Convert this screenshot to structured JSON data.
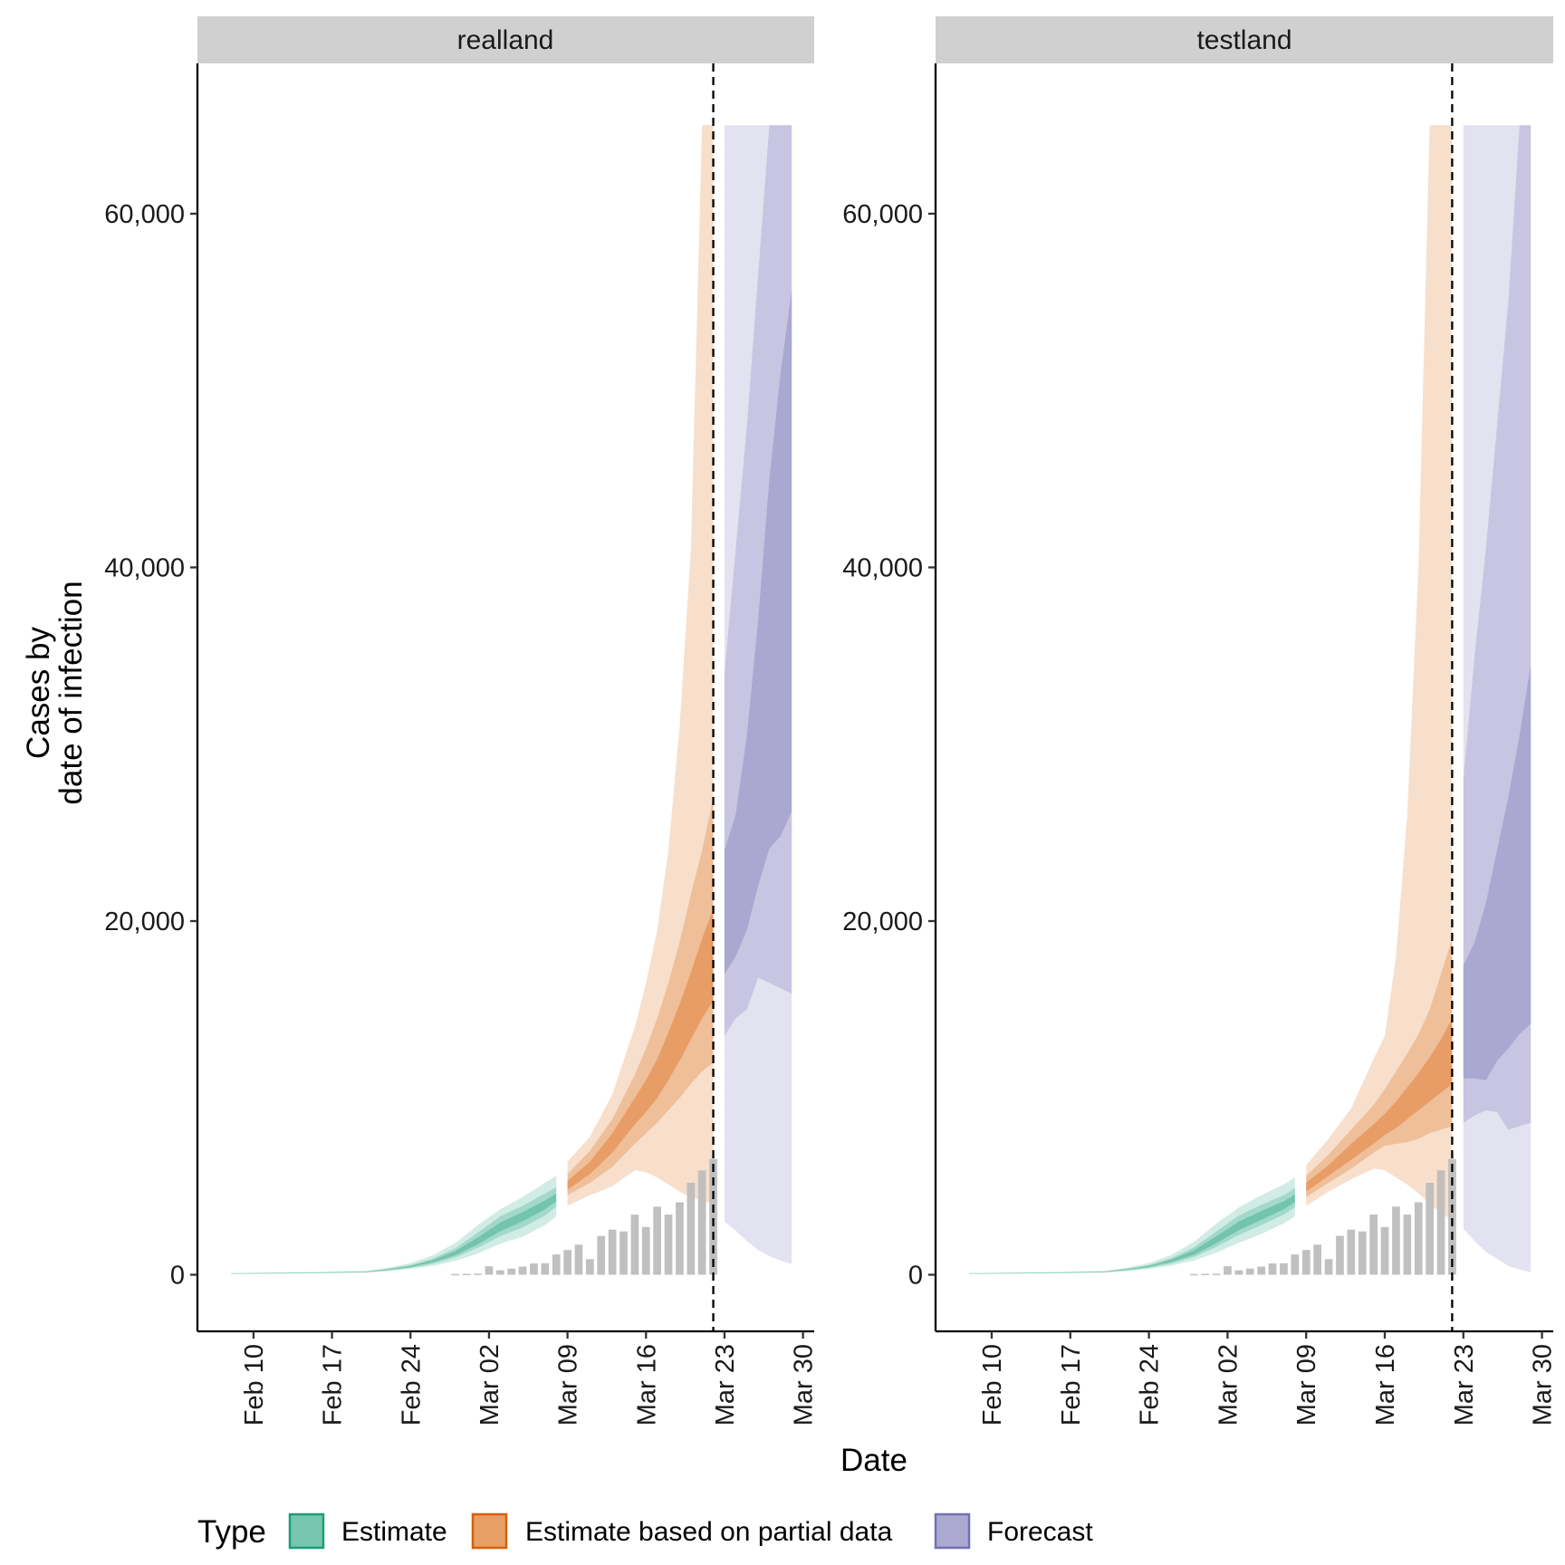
{
  "chart_data": {
    "type": "area",
    "xlabel": "Date",
    "ylabel_lines": [
      "Cases by",
      "date of infection"
    ],
    "y_ticks": [
      0,
      20000,
      40000,
      60000
    ],
    "y_tick_labels": [
      "0",
      "20,000",
      "40,000",
      "60,000"
    ],
    "ylim": [
      -3200,
      68500
    ],
    "x_ticks": [
      "2020-02-10",
      "2020-02-17",
      "2020-02-24",
      "2020-03-02",
      "2020-03-09",
      "2020-03-16",
      "2020-03-23",
      "2020-03-30"
    ],
    "x_tick_labels": [
      "Feb 10",
      "Feb 17",
      "Feb 24",
      "Mar 02",
      "Mar 09",
      "Mar 16",
      "Mar 23",
      "Mar 30"
    ],
    "xlim": [
      "2020-02-05",
      "2020-03-31"
    ],
    "legend": {
      "title": "Type",
      "position": "bottom",
      "entries": [
        {
          "label": "Estimate",
          "fill": "#1b9e77",
          "border": "#1b9e77"
        },
        {
          "label": "Estimate based on partial data",
          "fill": "#d95f02",
          "border": "#d95f02"
        },
        {
          "label": "Forecast",
          "fill": "#7570b3",
          "border": "#7570b3"
        }
      ]
    },
    "colors": {
      "estimate": "#1b9e77",
      "partial": "#d95f02",
      "forecast": "#7570b3",
      "bars": "#bdbdbd",
      "strip": "#d0d0d0"
    },
    "panels": [
      {
        "name": "realland",
        "cutoff_date": "2020-03-22",
        "reported_cases": [
          {
            "date": "2020-02-28",
            "value": 40
          },
          {
            "date": "2020-02-29",
            "value": 50
          },
          {
            "date": "2020-03-01",
            "value": 60
          },
          {
            "date": "2020-03-02",
            "value": 480
          },
          {
            "date": "2020-03-03",
            "value": 250
          },
          {
            "date": "2020-03-04",
            "value": 350
          },
          {
            "date": "2020-03-05",
            "value": 460
          },
          {
            "date": "2020-03-06",
            "value": 640
          },
          {
            "date": "2020-03-07",
            "value": 650
          },
          {
            "date": "2020-03-08",
            "value": 1150
          },
          {
            "date": "2020-03-09",
            "value": 1400
          },
          {
            "date": "2020-03-10",
            "value": 1700
          },
          {
            "date": "2020-03-11",
            "value": 880
          },
          {
            "date": "2020-03-12",
            "value": 2200
          },
          {
            "date": "2020-03-13",
            "value": 2550
          },
          {
            "date": "2020-03-14",
            "value": 2450
          },
          {
            "date": "2020-03-15",
            "value": 3400
          },
          {
            "date": "2020-03-16",
            "value": 2700
          },
          {
            "date": "2020-03-17",
            "value": 3850
          },
          {
            "date": "2020-03-18",
            "value": 3400
          },
          {
            "date": "2020-03-19",
            "value": 4100
          },
          {
            "date": "2020-03-20",
            "value": 5200
          },
          {
            "date": "2020-03-21",
            "value": 5900
          },
          {
            "date": "2020-03-22",
            "value": 6550
          }
        ],
        "estimate": [
          {
            "date": "2020-02-08",
            "q05": 40,
            "q20": 50,
            "q35": 60,
            "q65": 75,
            "q80": 85,
            "q95": 100
          },
          {
            "date": "2020-02-12",
            "q05": 60,
            "q20": 70,
            "q35": 80,
            "q65": 95,
            "q80": 110,
            "q95": 130
          },
          {
            "date": "2020-02-16",
            "q05": 90,
            "q20": 100,
            "q35": 110,
            "q65": 130,
            "q80": 140,
            "q95": 160
          },
          {
            "date": "2020-02-20",
            "q05": 120,
            "q20": 140,
            "q35": 150,
            "q65": 170,
            "q80": 190,
            "q95": 220
          },
          {
            "date": "2020-02-22",
            "q05": 200,
            "q20": 240,
            "q35": 270,
            "q65": 310,
            "q80": 340,
            "q95": 400
          },
          {
            "date": "2020-02-24",
            "q05": 330,
            "q20": 390,
            "q35": 430,
            "q65": 500,
            "q80": 550,
            "q95": 660
          },
          {
            "date": "2020-02-26",
            "q05": 500,
            "q20": 620,
            "q35": 700,
            "q65": 830,
            "q80": 920,
            "q95": 1100
          },
          {
            "date": "2020-02-28",
            "q05": 780,
            "q20": 980,
            "q35": 1100,
            "q65": 1340,
            "q80": 1500,
            "q95": 1800
          },
          {
            "date": "2020-03-01",
            "q05": 1200,
            "q20": 1520,
            "q35": 1720,
            "q65": 2100,
            "q80": 2380,
            "q95": 2800
          },
          {
            "date": "2020-03-03",
            "q05": 1750,
            "q20": 2180,
            "q35": 2460,
            "q65": 2950,
            "q80": 3300,
            "q95": 3700
          },
          {
            "date": "2020-03-05",
            "q05": 2150,
            "q20": 2680,
            "q35": 3020,
            "q65": 3540,
            "q80": 3900,
            "q95": 4400
          },
          {
            "date": "2020-03-07",
            "q05": 2800,
            "q20": 3350,
            "q35": 3700,
            "q65": 4200,
            "q80": 4600,
            "q95": 5200
          },
          {
            "date": "2020-03-08",
            "q05": 3300,
            "q20": 3850,
            "q35": 4150,
            "q65": 4600,
            "q80": 4950,
            "q95": 5600
          }
        ],
        "partial": [
          {
            "date": "2020-03-09",
            "q05": 3900,
            "q20": 4500,
            "q35": 4800,
            "q65": 5300,
            "q80": 5700,
            "q95": 6400
          },
          {
            "date": "2020-03-11",
            "q05": 4500,
            "q20": 5200,
            "q35": 5700,
            "q65": 6400,
            "q80": 7000,
            "q95": 7800
          },
          {
            "date": "2020-03-13",
            "q05": 5000,
            "q20": 6100,
            "q35": 6900,
            "q65": 8000,
            "q80": 8800,
            "q95": 10200
          },
          {
            "date": "2020-03-15",
            "q05": 5900,
            "q20": 7400,
            "q35": 8500,
            "q65": 10000,
            "q80": 11300,
            "q95": 14000
          },
          {
            "date": "2020-03-16",
            "q05": 5800,
            "q20": 8000,
            "q35": 9200,
            "q65": 11000,
            "q80": 12800,
            "q95": 16500
          },
          {
            "date": "2020-03-17",
            "q05": 5500,
            "q20": 8600,
            "q35": 10000,
            "q65": 12200,
            "q80": 14500,
            "q95": 19500
          },
          {
            "date": "2020-03-18",
            "q05": 5100,
            "q20": 9300,
            "q35": 11000,
            "q65": 13700,
            "q80": 16500,
            "q95": 24000
          },
          {
            "date": "2020-03-19",
            "q05": 4700,
            "q20": 10000,
            "q35": 12100,
            "q65": 15300,
            "q80": 18800,
            "q95": 31000
          },
          {
            "date": "2020-03-20",
            "q05": 4400,
            "q20": 10800,
            "q35": 13300,
            "q65": 17100,
            "q80": 21500,
            "q95": 41000
          },
          {
            "date": "2020-03-21",
            "q05": 4200,
            "q20": 11500,
            "q35": 14500,
            "q65": 19000,
            "q80": 24000,
            "q95": 65000
          },
          {
            "date": "2020-03-22",
            "q05": 4000,
            "q20": 12000,
            "q35": 15500,
            "q65": 20700,
            "q80": 27000,
            "q95": 65000
          }
        ],
        "forecast": [
          {
            "date": "2020-03-23",
            "q05": 3000,
            "q20": 13500,
            "q35": 17000,
            "q65": 24000,
            "q80": 34000,
            "q95": 65000
          },
          {
            "date": "2020-03-24",
            "q05": 2500,
            "q20": 14500,
            "q35": 18000,
            "q65": 26000,
            "q80": 41000,
            "q95": 65000
          },
          {
            "date": "2020-03-25",
            "q05": 1900,
            "q20": 15000,
            "q35": 19500,
            "q65": 30500,
            "q80": 48000,
            "q95": 65000
          },
          {
            "date": "2020-03-26",
            "q05": 1400,
            "q20": 16800,
            "q35": 22000,
            "q65": 37000,
            "q80": 56500,
            "q95": 65000
          },
          {
            "date": "2020-03-27",
            "q05": 1050,
            "q20": 16500,
            "q35": 24100,
            "q65": 45000,
            "q80": 65000,
            "q95": 65000
          },
          {
            "date": "2020-03-28",
            "q05": 800,
            "q20": 16200,
            "q35": 24800,
            "q65": 51000,
            "q80": 65000,
            "q95": 65000
          },
          {
            "date": "2020-03-29",
            "q05": 600,
            "q20": 15900,
            "q35": 26200,
            "q65": 55700,
            "q80": 65000,
            "q95": 65000
          }
        ]
      },
      {
        "name": "testland",
        "cutoff_date": "2020-03-22",
        "reported_cases": [
          {
            "date": "2020-02-28",
            "value": 40
          },
          {
            "date": "2020-02-29",
            "value": 50
          },
          {
            "date": "2020-03-01",
            "value": 60
          },
          {
            "date": "2020-03-02",
            "value": 480
          },
          {
            "date": "2020-03-03",
            "value": 250
          },
          {
            "date": "2020-03-04",
            "value": 350
          },
          {
            "date": "2020-03-05",
            "value": 460
          },
          {
            "date": "2020-03-06",
            "value": 640
          },
          {
            "date": "2020-03-07",
            "value": 650
          },
          {
            "date": "2020-03-08",
            "value": 1150
          },
          {
            "date": "2020-03-09",
            "value": 1400
          },
          {
            "date": "2020-03-10",
            "value": 1700
          },
          {
            "date": "2020-03-11",
            "value": 880
          },
          {
            "date": "2020-03-12",
            "value": 2200
          },
          {
            "date": "2020-03-13",
            "value": 2550
          },
          {
            "date": "2020-03-14",
            "value": 2450
          },
          {
            "date": "2020-03-15",
            "value": 3400
          },
          {
            "date": "2020-03-16",
            "value": 2700
          },
          {
            "date": "2020-03-17",
            "value": 3850
          },
          {
            "date": "2020-03-18",
            "value": 3400
          },
          {
            "date": "2020-03-19",
            "value": 4100
          },
          {
            "date": "2020-03-20",
            "value": 5200
          },
          {
            "date": "2020-03-21",
            "value": 5900
          },
          {
            "date": "2020-03-22",
            "value": 6550
          }
        ],
        "estimate": [
          {
            "date": "2020-02-08",
            "q05": 40,
            "q20": 50,
            "q35": 60,
            "q65": 75,
            "q80": 85,
            "q95": 100
          },
          {
            "date": "2020-02-12",
            "q05": 60,
            "q20": 70,
            "q35": 80,
            "q65": 95,
            "q80": 110,
            "q95": 130
          },
          {
            "date": "2020-02-16",
            "q05": 90,
            "q20": 100,
            "q35": 110,
            "q65": 130,
            "q80": 140,
            "q95": 160
          },
          {
            "date": "2020-02-20",
            "q05": 120,
            "q20": 140,
            "q35": 150,
            "q65": 170,
            "q80": 190,
            "q95": 220
          },
          {
            "date": "2020-02-22",
            "q05": 200,
            "q20": 240,
            "q35": 270,
            "q65": 310,
            "q80": 340,
            "q95": 400
          },
          {
            "date": "2020-02-24",
            "q05": 330,
            "q20": 390,
            "q35": 430,
            "q65": 500,
            "q80": 550,
            "q95": 660
          },
          {
            "date": "2020-02-26",
            "q05": 520,
            "q20": 640,
            "q35": 720,
            "q65": 860,
            "q80": 950,
            "q95": 1130
          },
          {
            "date": "2020-02-28",
            "q05": 800,
            "q20": 1000,
            "q35": 1130,
            "q65": 1380,
            "q80": 1540,
            "q95": 1850
          },
          {
            "date": "2020-03-01",
            "q05": 1250,
            "q20": 1580,
            "q35": 1780,
            "q65": 2180,
            "q80": 2450,
            "q95": 2900
          },
          {
            "date": "2020-03-03",
            "q05": 1800,
            "q20": 2250,
            "q35": 2520,
            "q65": 3000,
            "q80": 3350,
            "q95": 3800
          },
          {
            "date": "2020-03-05",
            "q05": 2300,
            "q20": 2800,
            "q35": 3100,
            "q65": 3600,
            "q80": 3950,
            "q95": 4500
          },
          {
            "date": "2020-03-07",
            "q05": 2900,
            "q20": 3400,
            "q35": 3700,
            "q65": 4150,
            "q80": 4500,
            "q95": 5100
          },
          {
            "date": "2020-03-08",
            "q05": 3300,
            "q20": 3800,
            "q35": 4100,
            "q65": 4550,
            "q80": 4900,
            "q95": 5500
          }
        ],
        "partial": [
          {
            "date": "2020-03-09",
            "q05": 3900,
            "q20": 4400,
            "q35": 4700,
            "q65": 5200,
            "q80": 5600,
            "q95": 6200
          },
          {
            "date": "2020-03-11",
            "q05": 4700,
            "q20": 5200,
            "q35": 5600,
            "q65": 6200,
            "q80": 6800,
            "q95": 7700
          },
          {
            "date": "2020-03-13",
            "q05": 5400,
            "q20": 6000,
            "q35": 6500,
            "q65": 7400,
            "q80": 8200,
            "q95": 9400
          },
          {
            "date": "2020-03-15",
            "q05": 6000,
            "q20": 6900,
            "q35": 7400,
            "q65": 8500,
            "q80": 9600,
            "q95": 12200
          },
          {
            "date": "2020-03-16",
            "q05": 5900,
            "q20": 7300,
            "q35": 7900,
            "q65": 9100,
            "q80": 10500,
            "q95": 13500
          },
          {
            "date": "2020-03-17",
            "q05": 5500,
            "q20": 7400,
            "q35": 8300,
            "q65": 9800,
            "q80": 11500,
            "q95": 18000
          },
          {
            "date": "2020-03-18",
            "q05": 5100,
            "q20": 7500,
            "q35": 8800,
            "q65": 10600,
            "q80": 12500,
            "q95": 26000
          },
          {
            "date": "2020-03-19",
            "q05": 4600,
            "q20": 7700,
            "q35": 9300,
            "q65": 11400,
            "q80": 13600,
            "q95": 40000
          },
          {
            "date": "2020-03-20",
            "q05": 4000,
            "q20": 8000,
            "q35": 9800,
            "q65": 12300,
            "q80": 15000,
            "q95": 65000
          },
          {
            "date": "2020-03-21",
            "q05": 3500,
            "q20": 8200,
            "q35": 10300,
            "q65": 13300,
            "q80": 17000,
            "q95": 65000
          },
          {
            "date": "2020-03-22",
            "q05": 3100,
            "q20": 8400,
            "q35": 10800,
            "q65": 14500,
            "q80": 19000,
            "q95": 65000
          }
        ],
        "forecast": [
          {
            "date": "2020-03-23",
            "q05": 2600,
            "q20": 8600,
            "q35": 11100,
            "q65": 17500,
            "q80": 28000,
            "q95": 65000
          },
          {
            "date": "2020-03-24",
            "q05": 1900,
            "q20": 9000,
            "q35": 11100,
            "q65": 18800,
            "q80": 35000,
            "q95": 65000
          },
          {
            "date": "2020-03-25",
            "q05": 1300,
            "q20": 9300,
            "q35": 11000,
            "q65": 21000,
            "q80": 41000,
            "q95": 65000
          },
          {
            "date": "2020-03-26",
            "q05": 900,
            "q20": 9200,
            "q35": 12100,
            "q65": 24000,
            "q80": 48000,
            "q95": 65000
          },
          {
            "date": "2020-03-27",
            "q05": 500,
            "q20": 8200,
            "q35": 12800,
            "q65": 27000,
            "q80": 55000,
            "q95": 65000
          },
          {
            "date": "2020-03-28",
            "q05": 300,
            "q20": 8400,
            "q35": 13600,
            "q65": 30500,
            "q80": 65000,
            "q95": 65000
          },
          {
            "date": "2020-03-29",
            "q05": 150,
            "q20": 8600,
            "q35": 14200,
            "q65": 34500,
            "q80": 65000,
            "q95": 65000
          }
        ]
      }
    ]
  }
}
